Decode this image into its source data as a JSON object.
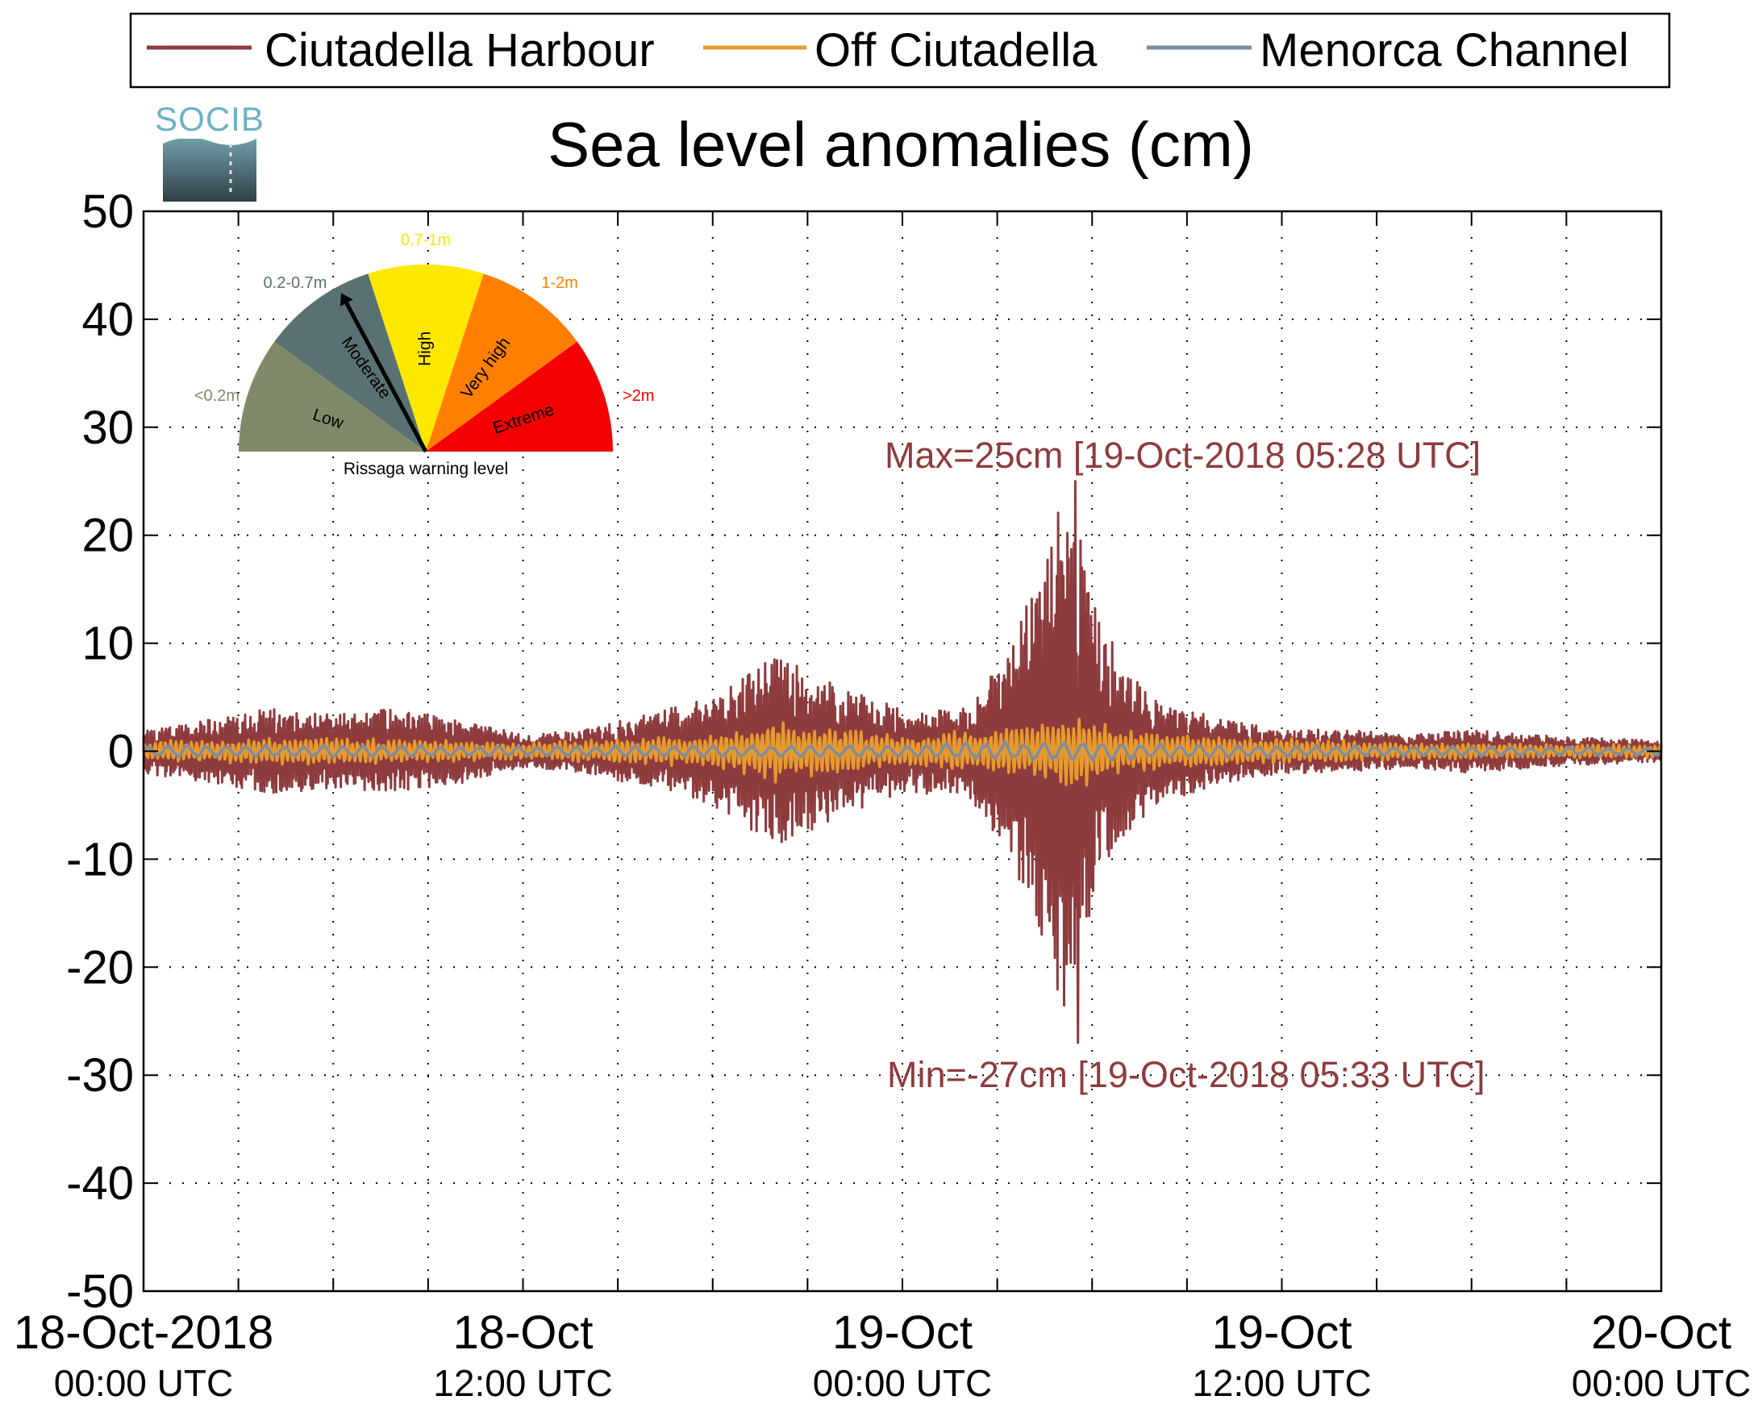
{
  "chart_data": {
    "type": "line",
    "title": "Sea level anomalies (cm)",
    "xlabel": "",
    "ylabel": "",
    "ylim": [
      -50,
      50
    ],
    "yticks": [
      50,
      40,
      30,
      20,
      10,
      0,
      -10,
      -20,
      -30,
      -40,
      -50
    ],
    "x_range_hours": [
      0,
      48
    ],
    "xticks": [
      {
        "hour": 0,
        "date": "18-Oct-2018",
        "time": "00:00 UTC"
      },
      {
        "hour": 12,
        "date": "18-Oct",
        "time": "12:00 UTC"
      },
      {
        "hour": 24,
        "date": "19-Oct",
        "time": "00:00 UTC"
      },
      {
        "hour": 36,
        "date": "19-Oct",
        "time": "12:00 UTC"
      },
      {
        "hour": 48,
        "date": "20-Oct",
        "time": "00:00 UTC"
      }
    ],
    "grid": true,
    "legend_position": "top",
    "series": [
      {
        "name": "Ciutadella Harbour",
        "color": "#8e3b3d",
        "envelope_hours": [
          0,
          2,
          4,
          6,
          8,
          10,
          12,
          14,
          16,
          18,
          20,
          22,
          24,
          26,
          27,
          28,
          28.5,
          29,
          29.5,
          30,
          31,
          32,
          34,
          36,
          38,
          40,
          42,
          44,
          46,
          48
        ],
        "envelope_amplitude": [
          2,
          3,
          4,
          3.5,
          4,
          3,
          1.5,
          2,
          3.5,
          5,
          9,
          6,
          4,
          4,
          8,
          14,
          18,
          24,
          22,
          14,
          8,
          5,
          3,
          2,
          2,
          1.5,
          2,
          1.5,
          1.2,
          1
        ],
        "max": 25,
        "min": -27
      },
      {
        "name": "Off Ciutadella",
        "color": "#e69a2e",
        "envelope_hours": [
          0,
          6,
          12,
          18,
          20,
          24,
          28,
          29.5,
          31,
          34,
          40,
          48
        ],
        "envelope_amplitude": [
          1,
          1.3,
          0.8,
          1.5,
          3,
          1.5,
          2.5,
          3.5,
          2,
          1.5,
          0.8,
          0.6
        ]
      },
      {
        "name": "Menorca Channel",
        "color": "#7c8da3",
        "envelope_hours": [
          0,
          12,
          24,
          29,
          34,
          48
        ],
        "envelope_amplitude": [
          0.6,
          0.5,
          0.6,
          1.0,
          0.6,
          0.4
        ]
      }
    ],
    "annotations": {
      "max_label": "Max=25cm [19-Oct-2018 05:28 UTC]",
      "min_label": "Min=-27cm [19-Oct-2018 05:33 UTC]"
    }
  },
  "logo": {
    "text": "SOCIB"
  },
  "gauge": {
    "title": "Rissaga warning level",
    "pointer_level": "Moderate",
    "sectors": [
      {
        "name": "Low",
        "range": "<0.2m",
        "color": "#7f8a69"
      },
      {
        "name": "Moderate",
        "range": "0.2-0.7m",
        "color": "#5a7173"
      },
      {
        "name": "High",
        "range": "0.7-1m",
        "color": "#ffe800"
      },
      {
        "name": "Very high",
        "range": "1-2m",
        "color": "#ff8000"
      },
      {
        "name": "Extreme",
        "range": ">2m",
        "color": "#f50000"
      }
    ]
  }
}
